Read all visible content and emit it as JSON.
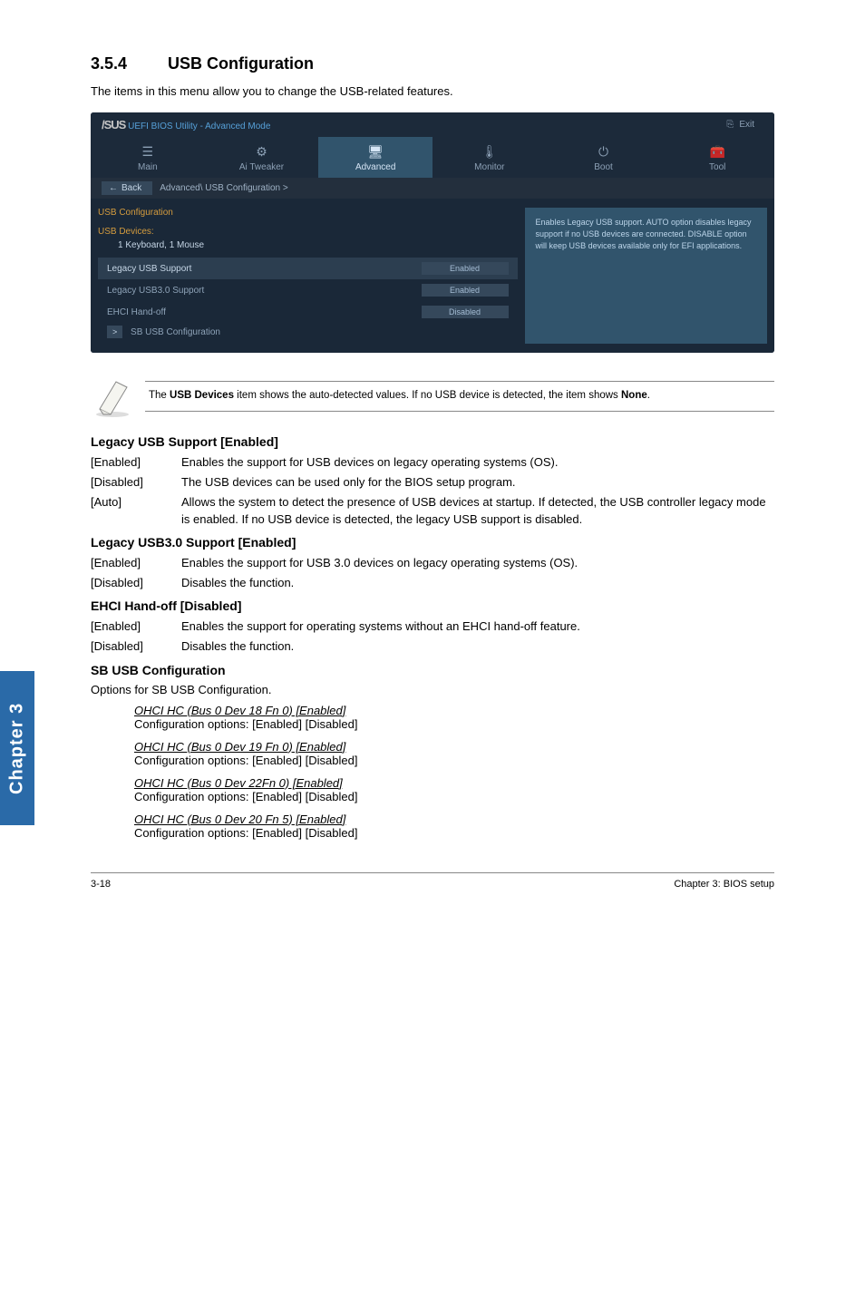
{
  "heading": {
    "num": "3.5.4",
    "title": "USB Configuration"
  },
  "intro": "The items in this menu allow you to change the USB-related features.",
  "bios": {
    "titlebar": {
      "brand": "/SUS",
      "title": "UEFI BIOS Utility - Advanced Mode",
      "exit": "Exit"
    },
    "tabs": [
      {
        "label": "Main",
        "icon": "☰"
      },
      {
        "label": "Ai Tweaker",
        "icon": "⚙"
      },
      {
        "label": "Advanced",
        "icon": "🖥"
      },
      {
        "label": "Monitor",
        "icon": "🌡"
      },
      {
        "label": "Boot",
        "icon": "⏻"
      },
      {
        "label": "Tool",
        "icon": "🧰"
      }
    ],
    "active_tab_index": 2,
    "breadcrumb": {
      "back": "Back",
      "path": "Advanced\\ USB Configuration  >"
    },
    "main_heading": "USB Configuration",
    "usb_devices_label": "USB Devices:",
    "usb_devices_value": "1 Keyboard, 1 Mouse",
    "rows": [
      {
        "label": "Legacy USB Support",
        "value": "Enabled",
        "selected": true
      },
      {
        "label": "Legacy USB3.0 Support",
        "value": "Enabled",
        "selected": false
      },
      {
        "label": "EHCI Hand-off",
        "value": "Disabled",
        "selected": false
      }
    ],
    "last_row": {
      "chip": ">",
      "label": "SB USB Configuration"
    },
    "help": "Enables Legacy USB support. AUTO option disables legacy support if no USB devices are connected. DISABLE option will keep USB devices available only for EFI applications.",
    "colors": {
      "bg": "#1a2838",
      "tab_active": "#31546c",
      "side_bg": "#31546c",
      "accent": "#d59c3e",
      "text_dim": "#8ca0b5",
      "chip_bg": "#35485b"
    }
  },
  "note": "The USB Devices item shows the auto-detected values. If no USB device is detected, the item shows None.",
  "note_bold1": "USB Devices",
  "note_bold2": "None",
  "settings": [
    {
      "title": "Legacy USB Support [Enabled]",
      "defs": [
        {
          "k": "[Enabled]",
          "v": "Enables the support for USB devices on legacy operating systems (OS)."
        },
        {
          "k": "[Disabled]",
          "v": "The USB devices can be used only for the BIOS setup program."
        },
        {
          "k": "[Auto]",
          "v": "Allows the system to detect the presence of USB devices at startup. If detected, the USB controller legacy mode is enabled. If no USB device is detected, the legacy USB support is disabled."
        }
      ]
    },
    {
      "title": "Legacy USB3.0 Support [Enabled]",
      "defs": [
        {
          "k": "[Enabled]",
          "v": "Enables the support for USB 3.0 devices on legacy operating systems (OS)."
        },
        {
          "k": "[Disabled]",
          "v": "Disables the function."
        }
      ]
    },
    {
      "title": "EHCI Hand-off [Disabled]",
      "defs": [
        {
          "k": "[Enabled]",
          "v": "Enables the support for operating systems without an EHCI hand-off feature."
        },
        {
          "k": "[Disabled]",
          "v": "Disables the function."
        }
      ]
    }
  ],
  "sb": {
    "title": "SB USB Configuration",
    "subtitle": "Options for SB USB Configuration.",
    "items": [
      {
        "h": "OHCI HC (Bus 0 Dev 18 Fn 0) [Enabled]",
        "d": "Configuration options: [Enabled] [Disabled]"
      },
      {
        "h": "OHCI HC (Bus 0 Dev 19 Fn 0) [Enabled]",
        "d": "Configuration options: [Enabled] [Disabled]"
      },
      {
        "h": "OHCI HC (Bus 0 Dev 22Fn 0) [Enabled]",
        "d": "Configuration options: [Enabled] [Disabled]"
      },
      {
        "h": "OHCI HC (Bus 0 Dev 20 Fn 5) [Enabled]",
        "d": "Configuration options: [Enabled] [Disabled]"
      }
    ]
  },
  "chapter_tab": "Chapter 3",
  "footer": {
    "left": "3-18",
    "right": "Chapter 3: BIOS setup"
  }
}
